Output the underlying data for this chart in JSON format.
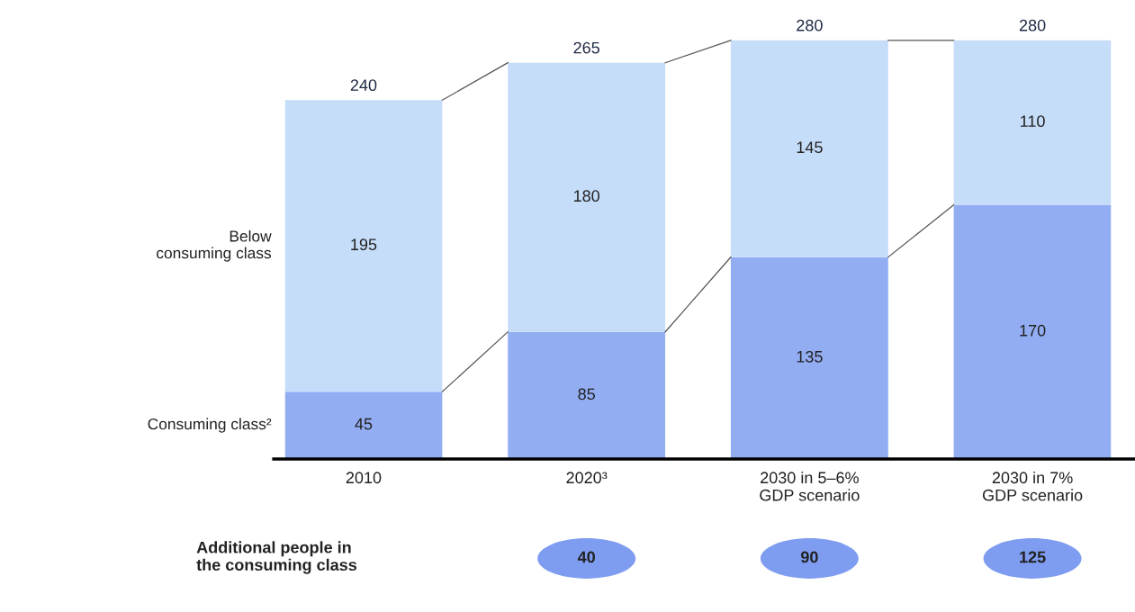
{
  "chart_data": {
    "type": "bar",
    "stacked": true,
    "data_labels": true,
    "grid": false,
    "categories": [
      "2010",
      "2020³",
      "2030 in 5–6%\nGDP scenario",
      "2030 in 7%\nGDP scenario"
    ],
    "series": [
      {
        "name": "Consuming class²",
        "color": "#93adf3",
        "values": [
          45,
          85,
          135,
          170
        ]
      },
      {
        "name": "Below\nconsuming class",
        "color": "#c6ddfa",
        "values": [
          195,
          180,
          145,
          110
        ]
      }
    ],
    "totals": [
      "240",
      "265",
      "280",
      "280"
    ],
    "annotations": [
      "Additional people in\nthe consuming class",
      "40",
      "90",
      "125"
    ]
  }
}
